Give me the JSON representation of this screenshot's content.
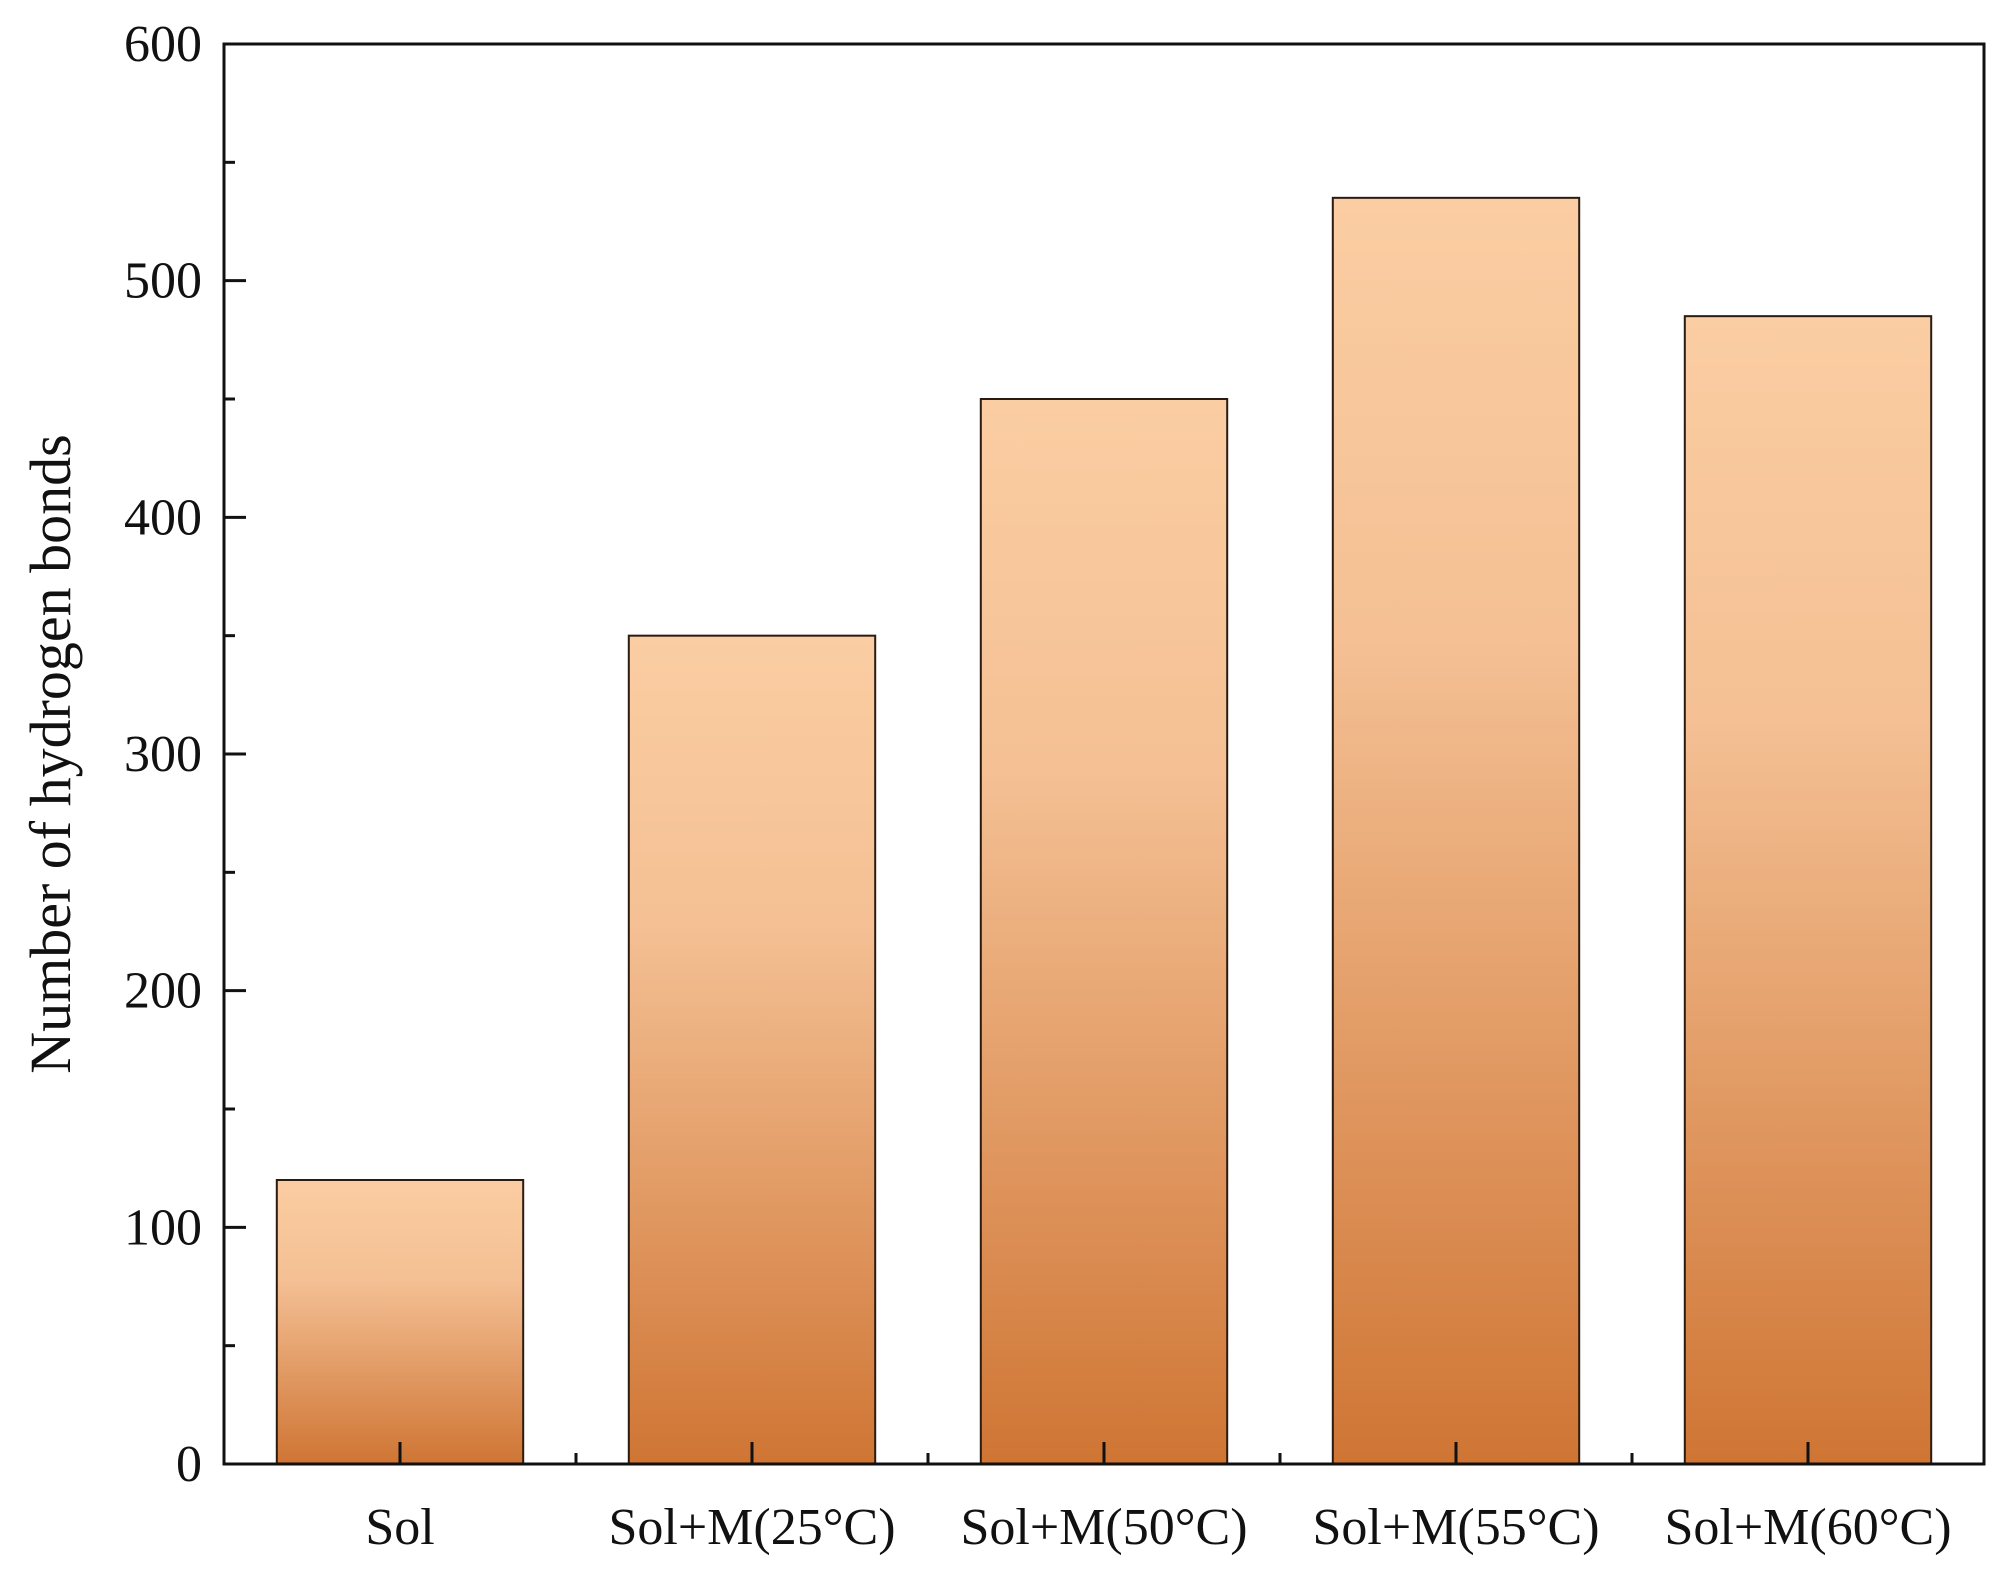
{
  "chart_data": {
    "type": "bar",
    "title": "",
    "xlabel": "",
    "ylabel": "Number of hydrogen bonds",
    "categories": [
      "Sol",
      "Sol+M(25°C)",
      "Sol+M(50°C)",
      "Sol+M(55°C)",
      "Sol+M(60°C)"
    ],
    "values": [
      120,
      350,
      450,
      535,
      485
    ],
    "ylim": [
      0,
      600
    ],
    "yticks": [
      0,
      100,
      200,
      300,
      400,
      500,
      600
    ],
    "ytick_labels": [
      "0",
      "100",
      "200",
      "300",
      "400",
      "500",
      "600"
    ],
    "y_minor_step": 50,
    "grid": false,
    "legend": "none",
    "bar_gradient": {
      "top": "#fbcda2",
      "bottom": "#cf7534"
    },
    "bar_edge_color": "#2a1a10"
  }
}
